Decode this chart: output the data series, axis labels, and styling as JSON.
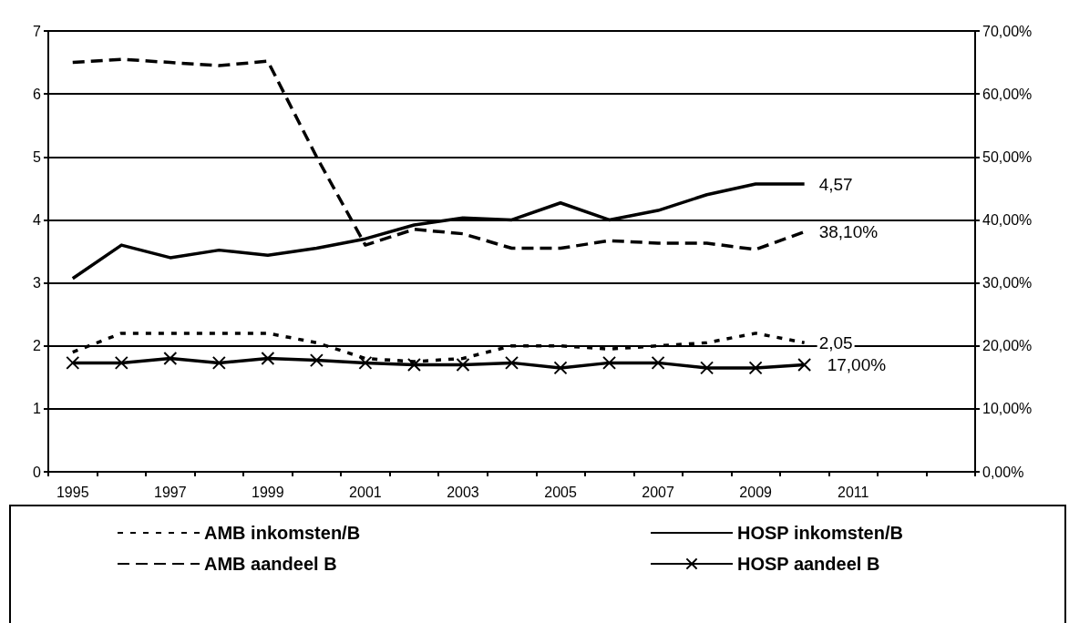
{
  "chart_data": {
    "type": "line",
    "categories": [
      "1995",
      null,
      "1997",
      null,
      "1999",
      null,
      "2001",
      null,
      "2003",
      null,
      "2005",
      null,
      "2007",
      null,
      "2009",
      null,
      "2011",
      null,
      null
    ],
    "series": [
      {
        "name": "AMB inkomsten/B",
        "color": "#000000",
        "line_style": "dotted",
        "marker": "none",
        "values": [
          1.9,
          2.2,
          2.2,
          2.2,
          2.2,
          2.05,
          1.8,
          1.75,
          1.8,
          2.0,
          2.0,
          1.95,
          2.0,
          2.05,
          2.2,
          2.05,
          null,
          null,
          null
        ],
        "value_labels": [
          null,
          null,
          null,
          null,
          null,
          null,
          null,
          null,
          null,
          null,
          null,
          null,
          null,
          null,
          null,
          "2,05",
          null,
          null,
          null
        ]
      },
      {
        "name": "HOSP inkomsten/B",
        "color": "#000000",
        "line_style": "solid",
        "marker": "none",
        "values": [
          3.07,
          3.6,
          3.4,
          3.52,
          3.44,
          3.55,
          3.7,
          3.92,
          4.03,
          4.0,
          4.27,
          4.0,
          4.15,
          4.4,
          4.57,
          4.57,
          null,
          null,
          null
        ],
        "value_labels": [
          null,
          null,
          null,
          null,
          null,
          null,
          null,
          null,
          null,
          null,
          null,
          null,
          null,
          null,
          null,
          "4,57",
          null,
          null,
          null
        ]
      },
      {
        "name": "AMB aandeel B",
        "color": "#000000",
        "line_style": "dashed",
        "marker": "none",
        "axis": "y2",
        "values": [
          65,
          65.5,
          65,
          64.5,
          65.2,
          50,
          36,
          38.5,
          37.8,
          35.5,
          35.5,
          36.7,
          36.3,
          36.3,
          35.3,
          38.1,
          null,
          null,
          null
        ],
        "value_labels": [
          null,
          null,
          null,
          null,
          null,
          null,
          null,
          null,
          null,
          null,
          null,
          null,
          null,
          null,
          null,
          "38,10%",
          null,
          null,
          null
        ]
      },
      {
        "name": "HOSP aandeel B",
        "color": "#000000",
        "line_style": "solid",
        "marker": "cross",
        "axis": "y2",
        "values": [
          17.3,
          17.3,
          18,
          17.3,
          18,
          17.7,
          17.3,
          17,
          17,
          17.3,
          16.5,
          17.3,
          17.3,
          16.5,
          16.5,
          17,
          null,
          null,
          null
        ],
        "value_labels": [
          null,
          null,
          null,
          null,
          null,
          null,
          null,
          null,
          null,
          null,
          null,
          null,
          null,
          null,
          null,
          "17,00%",
          null,
          null,
          null
        ]
      }
    ],
    "ylim": [
      0,
      7
    ],
    "yticks": [
      0,
      1,
      2,
      3,
      4,
      5,
      6,
      7
    ],
    "y2lim": [
      0,
      70
    ],
    "y2ticks": [
      {
        "value": 0,
        "label": "0,00%"
      },
      {
        "value": 10,
        "label": "10,00%"
      },
      {
        "value": 20,
        "label": "20,00%"
      },
      {
        "value": 30,
        "label": "30,00%"
      },
      {
        "value": 40,
        "label": "40,00%"
      },
      {
        "value": 50,
        "label": "50,00%"
      },
      {
        "value": 60,
        "label": "60,00%"
      },
      {
        "value": 70,
        "label": "70,00%"
      }
    ],
    "grid": "y",
    "legend": "bottom"
  }
}
